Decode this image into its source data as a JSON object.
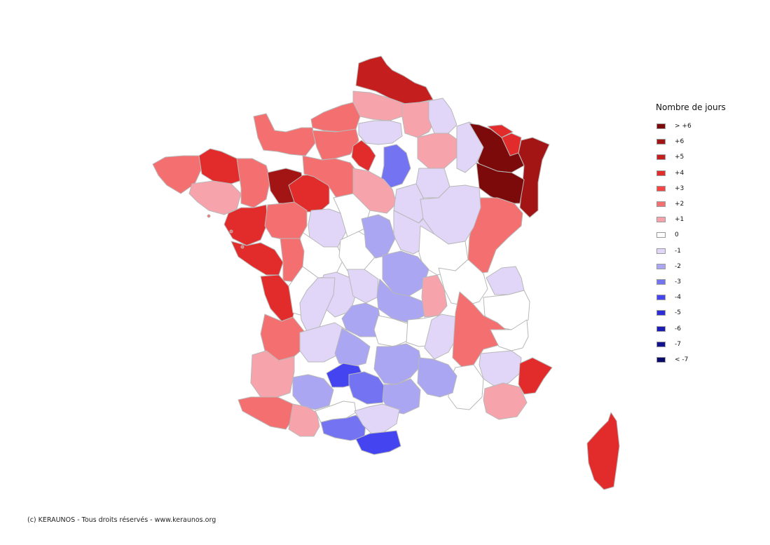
{
  "legend": {
    "title": "Nombre de jours",
    "items": [
      {
        "label": "> +6",
        "color": "#7d0a0a"
      },
      {
        "label": "+6",
        "color": "#a31515"
      },
      {
        "label": "+5",
        "color": "#c41e1e"
      },
      {
        "label": "+4",
        "color": "#e22b2b"
      },
      {
        "label": "+3",
        "color": "#f54545"
      },
      {
        "label": "+2",
        "color": "#f47070"
      },
      {
        "label": "+1",
        "color": "#f7a3ab"
      },
      {
        "label": "0",
        "color": "#ffffff"
      },
      {
        "label": "-1",
        "color": "#e2d6f8"
      },
      {
        "label": "-2",
        "color": "#aaa6f2"
      },
      {
        "label": "-3",
        "color": "#7474f2"
      },
      {
        "label": "-4",
        "color": "#4444f0"
      },
      {
        "label": "-5",
        "color": "#2c2cd8"
      },
      {
        "label": "-6",
        "color": "#1c1cb4"
      },
      {
        "label": "-7",
        "color": "#12128c"
      },
      {
        "label": "< -7",
        "color": "#0a0a6a"
      }
    ]
  },
  "copyright": "(c) KERAUNOS - Tous droits réservés - www.keraunos.org"
}
